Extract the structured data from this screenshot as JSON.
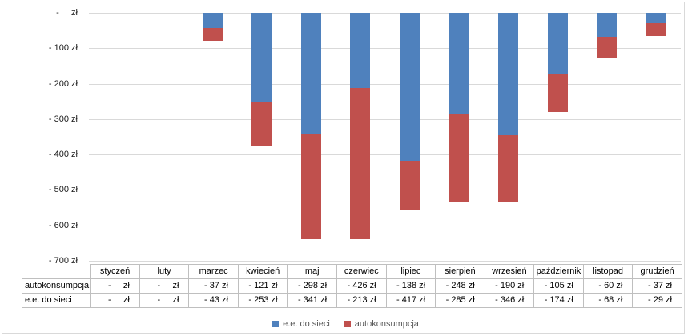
{
  "chart_data": {
    "type": "bar",
    "stacked": true,
    "direction": "negative-down",
    "title": "",
    "xlabel": "",
    "ylabel": "",
    "ylim": [
      -700,
      0
    ],
    "grid": true,
    "legend_position": "bottom",
    "categories": [
      "styczeń",
      "luty",
      "marzec",
      "kwiecień",
      "maj",
      "czerwiec",
      "lipiec",
      "sierpień",
      "wrzesień",
      "październik",
      "listopad",
      "grudzień"
    ],
    "series": [
      {
        "name": "e.e. do sieci",
        "color": "#4F81BD",
        "values": [
          0,
          0,
          -43,
          -253,
          -341,
          -213,
          -417,
          -285,
          -346,
          -174,
          -68,
          -29
        ]
      },
      {
        "name": "autokonsumpcja",
        "color": "#C0504D",
        "values": [
          0,
          0,
          -37,
          -121,
          -298,
          -426,
          -138,
          -248,
          -190,
          -105,
          -60,
          -37
        ]
      }
    ],
    "yticks": [
      {
        "value": 0,
        "label": "-     zł"
      },
      {
        "value": -100,
        "label": "- 100 zł"
      },
      {
        "value": -200,
        "label": "- 200 zł"
      },
      {
        "value": -300,
        "label": "- 300 zł"
      },
      {
        "value": -400,
        "label": "- 400 zł"
      },
      {
        "value": -500,
        "label": "- 500 zł"
      },
      {
        "value": -600,
        "label": "- 600 zł"
      },
      {
        "value": -700,
        "label": "- 700 zł"
      }
    ]
  },
  "table": {
    "header": [
      "styczeń",
      "luty",
      "marzec",
      "kwiecień",
      "maj",
      "czerwiec",
      "lipiec",
      "sierpień",
      "wrzesień",
      "październik",
      "listopad",
      "grudzień"
    ],
    "rows": [
      {
        "label": "autokonsumpcja",
        "cells": [
          "-     zł",
          "-     zł",
          "- 37 zł",
          "- 121 zł",
          "- 298 zł",
          "- 426 zł",
          "- 138 zł",
          "- 248 zł",
          "- 190 zł",
          "- 105 zł",
          "- 60 zł",
          "- 37 zł"
        ]
      },
      {
        "label": "e.e. do sieci",
        "cells": [
          "-     zł",
          "-     zł",
          "- 43 zł",
          "- 253 zł",
          "- 341 zł",
          "- 213 zł",
          "- 417 zł",
          "- 285 zł",
          "- 346 zł",
          "- 174 zł",
          "- 68 zł",
          "- 29 zł"
        ]
      }
    ]
  },
  "legend": {
    "items": [
      {
        "label": "e.e. do sieci",
        "color": "#4F81BD"
      },
      {
        "label": "autokonsumpcja",
        "color": "#C0504D"
      }
    ]
  },
  "colors": {
    "series_blue": "#4F81BD",
    "series_red": "#C0504D",
    "gridline": "#D9D9D9",
    "chart_border": "#D9D9D9",
    "table_border": "#BFBFBF",
    "axis_text": "#1A1A1A",
    "legend_text": "#595959"
  }
}
